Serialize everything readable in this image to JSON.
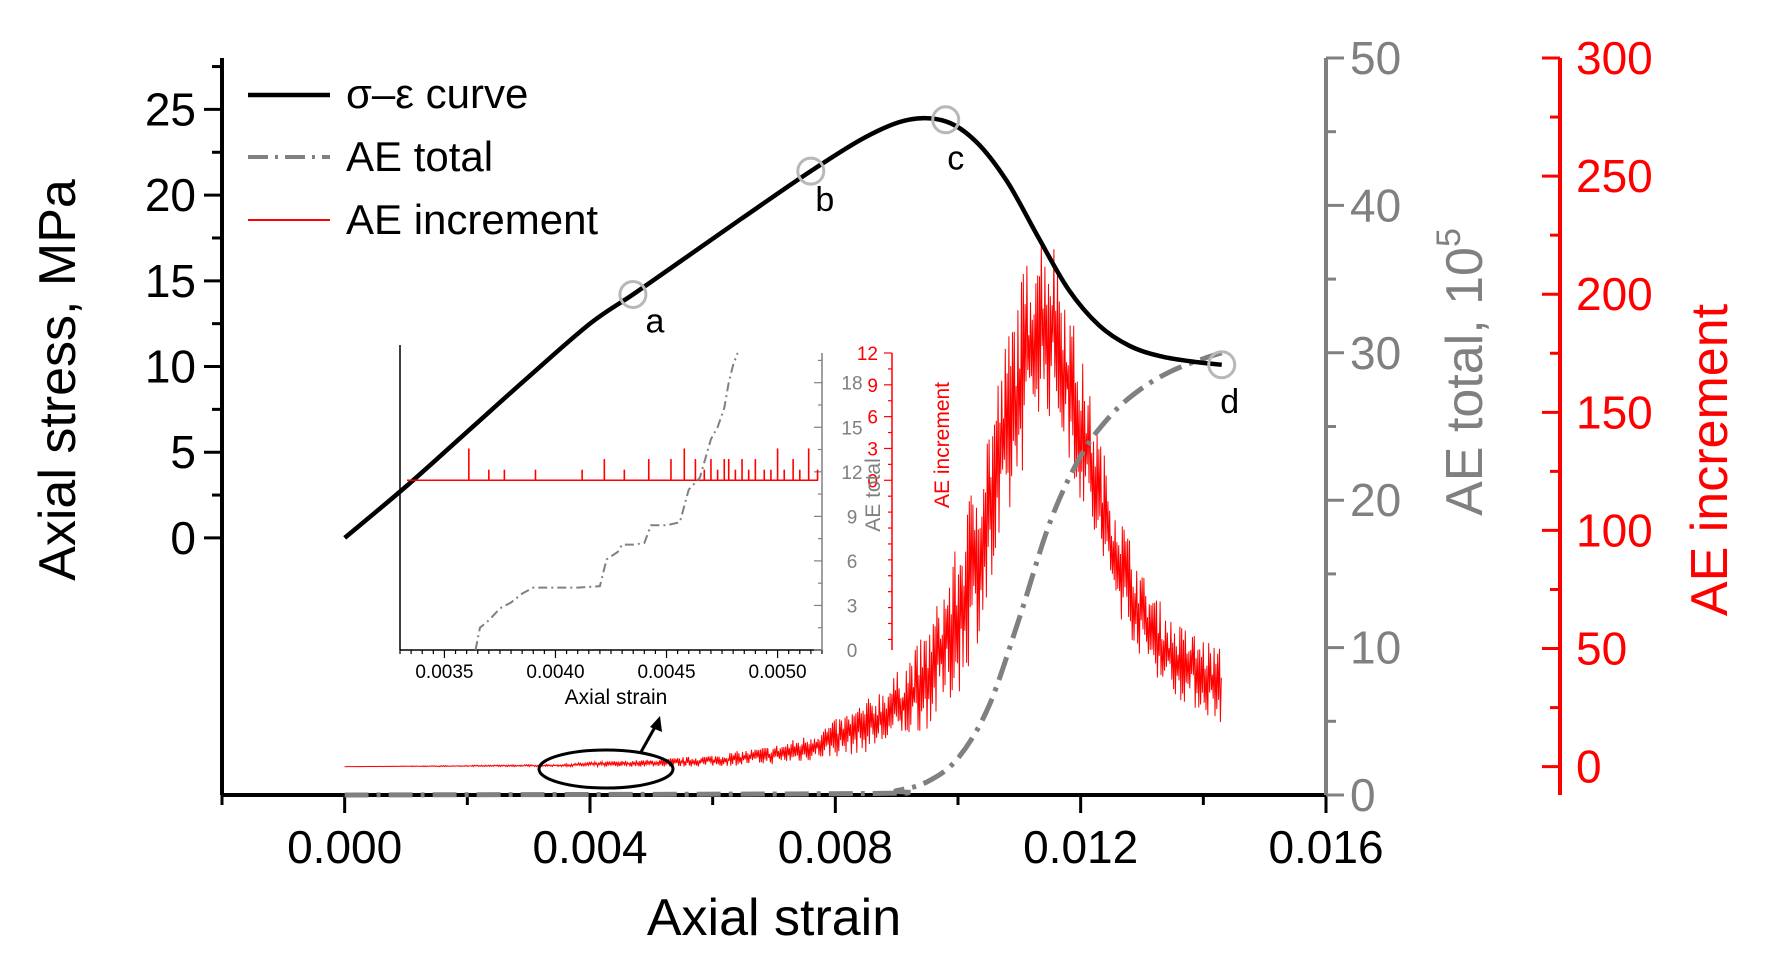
{
  "chart_data": {
    "type": "line",
    "xlabel": "Axial strain",
    "xlim": [
      -0.002,
      0.016
    ],
    "x_ticks": [
      "0.000",
      "0.004",
      "0.008",
      "0.012",
      "0.016"
    ],
    "axes": {
      "left": {
        "label": "Axial stress, MPa",
        "ylim": [
          -15,
          28
        ],
        "ticks": [
          "0",
          "5",
          "10",
          "15",
          "20",
          "25"
        ],
        "color": "#000000"
      },
      "right_total": {
        "label": "AE total, 10",
        "label_sup": "5",
        "ylim": [
          0,
          50
        ],
        "ticks": [
          "0",
          "10",
          "20",
          "30",
          "40",
          "50"
        ],
        "color": "#808080"
      },
      "right_increment": {
        "label": "AE increment",
        "ylim": [
          -12,
          300
        ],
        "ticks": [
          "0",
          "50",
          "100",
          "150",
          "200",
          "250",
          "300"
        ],
        "color": "#ff0000"
      }
    },
    "legend": {
      "placement": "top-left",
      "entries": [
        "σ–ε curve",
        "AE total",
        "AE increment"
      ]
    },
    "series": [
      {
        "name": "σ–ε curve",
        "axis": "left",
        "color": "#000000",
        "style": "solid",
        "x": [
          0.0,
          0.001,
          0.002,
          0.003,
          0.004,
          0.0047,
          0.0055,
          0.0065,
          0.0076,
          0.0085,
          0.0092,
          0.0098,
          0.0103,
          0.0108,
          0.0113,
          0.0118,
          0.0123,
          0.0128,
          0.0133,
          0.0138,
          0.0143
        ],
        "y": [
          0.0,
          3.0,
          6.2,
          9.4,
          12.5,
          14.2,
          16.2,
          18.7,
          21.4,
          23.4,
          24.4,
          24.3,
          23.1,
          20.8,
          17.6,
          14.5,
          12.4,
          11.2,
          10.6,
          10.3,
          10.1
        ]
      },
      {
        "name": "AE total",
        "axis": "right_total",
        "color": "#808080",
        "style": "dashdot",
        "x": [
          0.0,
          0.0085,
          0.009,
          0.0095,
          0.01,
          0.0105,
          0.011,
          0.0115,
          0.012,
          0.0125,
          0.013,
          0.0135,
          0.014,
          0.0143
        ],
        "y": [
          0.0,
          0.1,
          0.3,
          0.9,
          2.5,
          6.0,
          12.0,
          18.5,
          23.0,
          25.8,
          27.6,
          28.8,
          29.6,
          30.0
        ]
      },
      {
        "name": "AE increment",
        "axis": "right_increment",
        "color": "#ff0000",
        "style": "noisy-band",
        "x": [
          0.0,
          0.0035,
          0.004,
          0.005,
          0.006,
          0.007,
          0.0075,
          0.008,
          0.0085,
          0.009,
          0.0095,
          0.01,
          0.0105,
          0.011,
          0.0113,
          0.0116,
          0.012,
          0.0125,
          0.013,
          0.0135,
          0.014,
          0.0143
        ],
        "y_min": [
          0,
          0,
          0,
          0,
          0,
          1,
          2,
          4,
          6,
          10,
          16,
          30,
          65,
          120,
          150,
          145,
          112,
          70,
          45,
          30,
          22,
          18
        ],
        "y_max": [
          0,
          1,
          2,
          3,
          5,
          9,
          13,
          20,
          28,
          40,
          58,
          95,
          150,
          205,
          230,
          222,
          175,
          120,
          82,
          62,
          55,
          50
        ]
      }
    ],
    "annotations": [
      {
        "label": "a",
        "x": 0.0047,
        "y": 14.2
      },
      {
        "label": "b",
        "x": 0.0076,
        "y": 21.4
      },
      {
        "label": "c",
        "x": 0.0098,
        "y": 24.4
      },
      {
        "label": "d",
        "x": 0.0143,
        "y": 10.1
      }
    ],
    "inset": {
      "xlabel": "Axial strain",
      "xlim": [
        0.0033,
        0.0052
      ],
      "x_ticks": [
        "0.0035",
        "0.0040",
        "0.0045",
        "0.0050"
      ],
      "ylabel_total": "AE total",
      "ylim_total": [
        0,
        20
      ],
      "y_ticks_total": [
        "0",
        "3",
        "6",
        "9",
        "12",
        "15",
        "18"
      ],
      "ylabel_increment": "AE increment",
      "ylim_increment": [
        -16,
        12
      ],
      "y_ticks_increment": [
        "0",
        "3",
        "6",
        "9",
        "12"
      ],
      "total_step": {
        "x": [
          0.00364,
          0.00366,
          0.0037,
          0.00375,
          0.0038,
          0.00385,
          0.0039,
          0.004,
          0.0041,
          0.0042,
          0.00423,
          0.00428,
          0.0043,
          0.00435,
          0.0044,
          0.00443,
          0.0045,
          0.00456,
          0.0046,
          0.00465,
          0.0047,
          0.00473,
          0.00476,
          0.00478,
          0.0048,
          0.00482
        ],
        "y": [
          0,
          1.5,
          2.0,
          2.8,
          3.2,
          3.8,
          4.2,
          4.2,
          4.2,
          4.3,
          6.1,
          6.6,
          7.1,
          7.1,
          7.2,
          8.4,
          8.4,
          8.6,
          10.8,
          11.6,
          14.2,
          15.0,
          16.3,
          18.0,
          19.2,
          20.0
        ]
      },
      "increment_spikes": {
        "x": [
          0.00361,
          0.0037,
          0.00377,
          0.00391,
          0.00412,
          0.00422,
          0.00431,
          0.00442,
          0.00452,
          0.00458,
          0.00463,
          0.00467,
          0.0047,
          0.00473,
          0.00476,
          0.00478,
          0.00481,
          0.00484,
          0.00487,
          0.0049,
          0.00494,
          0.00497,
          0.005,
          0.00503,
          0.00507,
          0.0051,
          0.00514,
          0.00518
        ],
        "y": [
          3,
          1,
          1,
          1,
          1,
          2,
          1,
          2,
          2,
          3,
          2,
          1,
          2,
          1,
          2,
          2,
          1,
          2,
          1,
          2,
          1,
          1,
          3,
          1,
          2,
          1,
          3,
          1
        ]
      }
    }
  }
}
